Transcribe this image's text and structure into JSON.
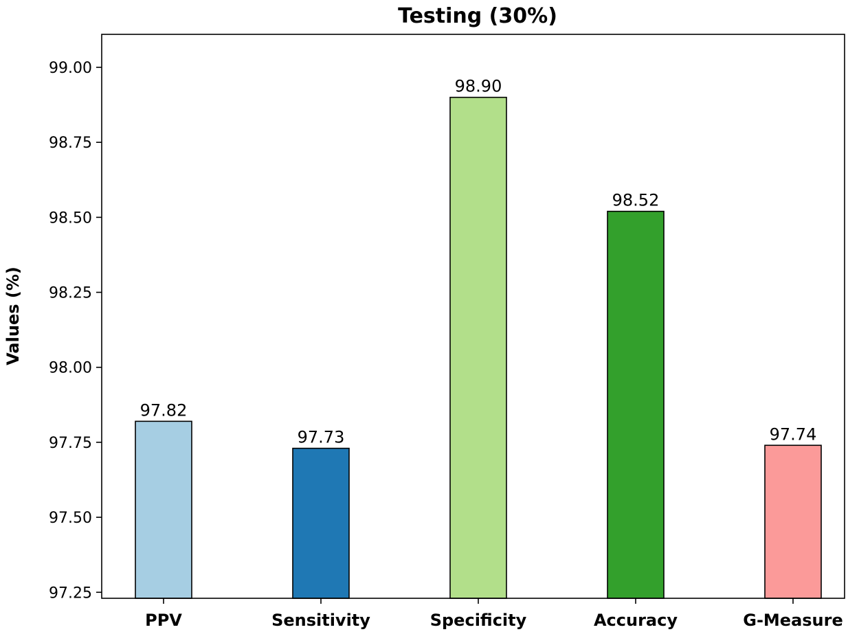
{
  "chart_data": {
    "type": "bar",
    "title": "Testing (30%)",
    "xlabel": "",
    "ylabel": "Values (%)",
    "categories": [
      "PPV",
      "Sensitivity",
      "Specificity",
      "Accuracy",
      "G-Measure"
    ],
    "values": [
      97.82,
      97.73,
      98.9,
      98.52,
      97.74
    ],
    "value_labels": [
      "97.82",
      "97.73",
      "98.90",
      "98.52",
      "97.74"
    ],
    "colors": [
      "#a6cee3",
      "#1f78b4",
      "#b2df8a",
      "#33a02c",
      "#fb9a99"
    ],
    "ylim": [
      97.23,
      99.11
    ],
    "yticks": [
      97.25,
      97.5,
      97.75,
      98.0,
      98.25,
      98.5,
      98.75,
      99.0
    ],
    "ytick_labels": [
      "97.25",
      "97.50",
      "97.75",
      "98.00",
      "98.25",
      "98.50",
      "98.75",
      "99.00"
    ],
    "grid": false,
    "legend": "none"
  }
}
